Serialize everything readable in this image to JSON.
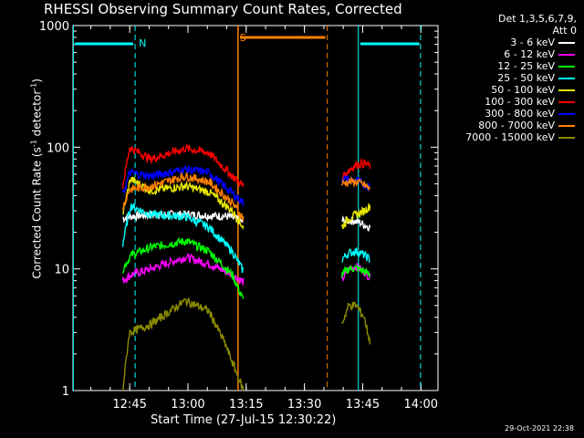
{
  "chart_data": {
    "type": "line",
    "title": "RHESSI Observing Summary Count Rates, Corrected",
    "xlabel": "Start Time (27-Jul-15 12:30:22)",
    "ylabel": "Corrected Count Rate (s-1 detector-1)",
    "ylabel_parts": [
      "Corrected Count Rate (s",
      "-1",
      " detector",
      "-1",
      ")"
    ],
    "yscale": "log",
    "ylim": [
      1,
      1000
    ],
    "xlim_minutes": [
      0,
      94
    ],
    "xticks": [
      {
        "label": "12:45",
        "value": 14.6
      },
      {
        "label": "13:00",
        "value": 29.6
      },
      {
        "label": "13:15",
        "value": 44.6
      },
      {
        "label": "13:30",
        "value": 59.6
      },
      {
        "label": "13:45",
        "value": 74.6
      },
      {
        "label": "14:00",
        "value": 89.6
      }
    ],
    "yticks": [
      {
        "label": "1",
        "value": 1
      },
      {
        "label": "10",
        "value": 10
      },
      {
        "label": "100",
        "value": 100
      },
      {
        "label": "1000",
        "value": 1000
      }
    ],
    "legend_header": [
      "Det 1,3,5,6,7,9,",
      "Att 0"
    ],
    "legend_placement": "right",
    "series": [
      {
        "name": "3 - 6 keV",
        "color": "#ffffff",
        "seg1": [
          [
            12.8,
            26
          ],
          [
            14.5,
            27
          ],
          [
            20,
            28
          ],
          [
            30,
            28
          ],
          [
            40,
            27
          ],
          [
            43,
            25
          ],
          [
            43.9,
            24
          ]
        ],
        "seg2": [
          [
            69.2,
            25
          ],
          [
            72,
            25
          ],
          [
            74,
            24
          ],
          [
            75,
            23
          ],
          [
            76.5,
            22
          ]
        ]
      },
      {
        "name": "6 - 12 keV",
        "color": "#ff00ff",
        "seg1": [
          [
            12.8,
            8
          ],
          [
            15,
            9
          ],
          [
            20,
            10
          ],
          [
            29,
            12.5
          ],
          [
            35,
            11
          ],
          [
            41,
            9
          ],
          [
            43.9,
            7.8
          ]
        ],
        "seg2": [
          [
            69.2,
            8
          ],
          [
            71,
            10
          ],
          [
            73,
            10.5
          ],
          [
            75,
            9.5
          ],
          [
            76.5,
            8.5
          ]
        ]
      },
      {
        "name": "12 - 25 keV",
        "color": "#00ff00",
        "seg1": [
          [
            12.8,
            10
          ],
          [
            15,
            13
          ],
          [
            20,
            15
          ],
          [
            29,
            17
          ],
          [
            35,
            14
          ],
          [
            41,
            9
          ],
          [
            43.9,
            5.5
          ]
        ],
        "seg2": [
          [
            69.2,
            9
          ],
          [
            71,
            10
          ],
          [
            73,
            10.2
          ],
          [
            75,
            9.5
          ],
          [
            76.5,
            9
          ]
        ]
      },
      {
        "name": "25 - 50 keV",
        "color": "#00ffff",
        "seg1": [
          [
            12.8,
            16
          ],
          [
            14.8,
            33
          ],
          [
            20,
            28
          ],
          [
            29,
            27
          ],
          [
            35,
            22
          ],
          [
            41,
            14
          ],
          [
            43.9,
            9.5
          ]
        ],
        "seg2": [
          [
            69.2,
            12
          ],
          [
            71,
            13.5
          ],
          [
            73,
            14
          ],
          [
            75,
            13
          ],
          [
            76.5,
            12
          ]
        ]
      },
      {
        "name": "50 - 100 keV",
        "color": "#e6e600",
        "seg1": [
          [
            12.8,
            28
          ],
          [
            14.8,
            55
          ],
          [
            20,
            44
          ],
          [
            29,
            48
          ],
          [
            35,
            43
          ],
          [
            41,
            30
          ],
          [
            43.9,
            22
          ]
        ],
        "seg2": [
          [
            69.2,
            22
          ],
          [
            71,
            26
          ],
          [
            73,
            28
          ],
          [
            75,
            30
          ],
          [
            76.5,
            33
          ]
        ]
      },
      {
        "name": "100 - 300 keV",
        "color": "#ff0000",
        "seg1": [
          [
            12.8,
            48
          ],
          [
            14.6,
            100
          ],
          [
            20,
            80
          ],
          [
            29,
            98
          ],
          [
            35,
            90
          ],
          [
            41,
            58
          ],
          [
            43.9,
            48
          ]
        ],
        "seg2": [
          [
            69.2,
            55
          ],
          [
            71,
            65
          ],
          [
            73,
            72
          ],
          [
            75,
            74
          ],
          [
            76.5,
            70
          ]
        ]
      },
      {
        "name": "300 - 800 keV",
        "color": "#0000ff",
        "seg1": [
          [
            12.8,
            40
          ],
          [
            14.6,
            62
          ],
          [
            20,
            58
          ],
          [
            29,
            66
          ],
          [
            35,
            62
          ],
          [
            41,
            42
          ],
          [
            43.9,
            35
          ]
        ],
        "seg2": [
          [
            69.2,
            55
          ],
          [
            71,
            54
          ],
          [
            73,
            53
          ],
          [
            75,
            50
          ],
          [
            76.5,
            47
          ]
        ]
      },
      {
        "name": "800 - 7000 keV",
        "color": "#ff8000",
        "seg1": [
          [
            12.8,
            32
          ],
          [
            14.6,
            45
          ],
          [
            20,
            48
          ],
          [
            29,
            58
          ],
          [
            35,
            52
          ],
          [
            41,
            35
          ],
          [
            43.9,
            26
          ]
        ],
        "seg2": [
          [
            69.2,
            50
          ],
          [
            71,
            52
          ],
          [
            73,
            52
          ],
          [
            75,
            49
          ],
          [
            76.5,
            45
          ]
        ]
      },
      {
        "name": "7000 - 15000 keV",
        "color": "#8b8b00",
        "seg1": [
          [
            12.8,
            1
          ],
          [
            14.5,
            3
          ],
          [
            20,
            3.5
          ],
          [
            29,
            5.5
          ],
          [
            35,
            4.5
          ],
          [
            39,
            2.5
          ],
          [
            43.9,
            1
          ]
        ],
        "seg2": [
          [
            69.2,
            3.5
          ],
          [
            71,
            5
          ],
          [
            73,
            5
          ],
          [
            75,
            4
          ],
          [
            76.5,
            2.5
          ]
        ]
      }
    ],
    "annotations": [
      {
        "label": "N",
        "color": "#00ffff",
        "value_minutes": 16
      },
      {
        "label": "S",
        "color": "#ff8000",
        "value_minutes": 42
      }
    ]
  },
  "timestamp": "29-Oct-2021 22:38"
}
